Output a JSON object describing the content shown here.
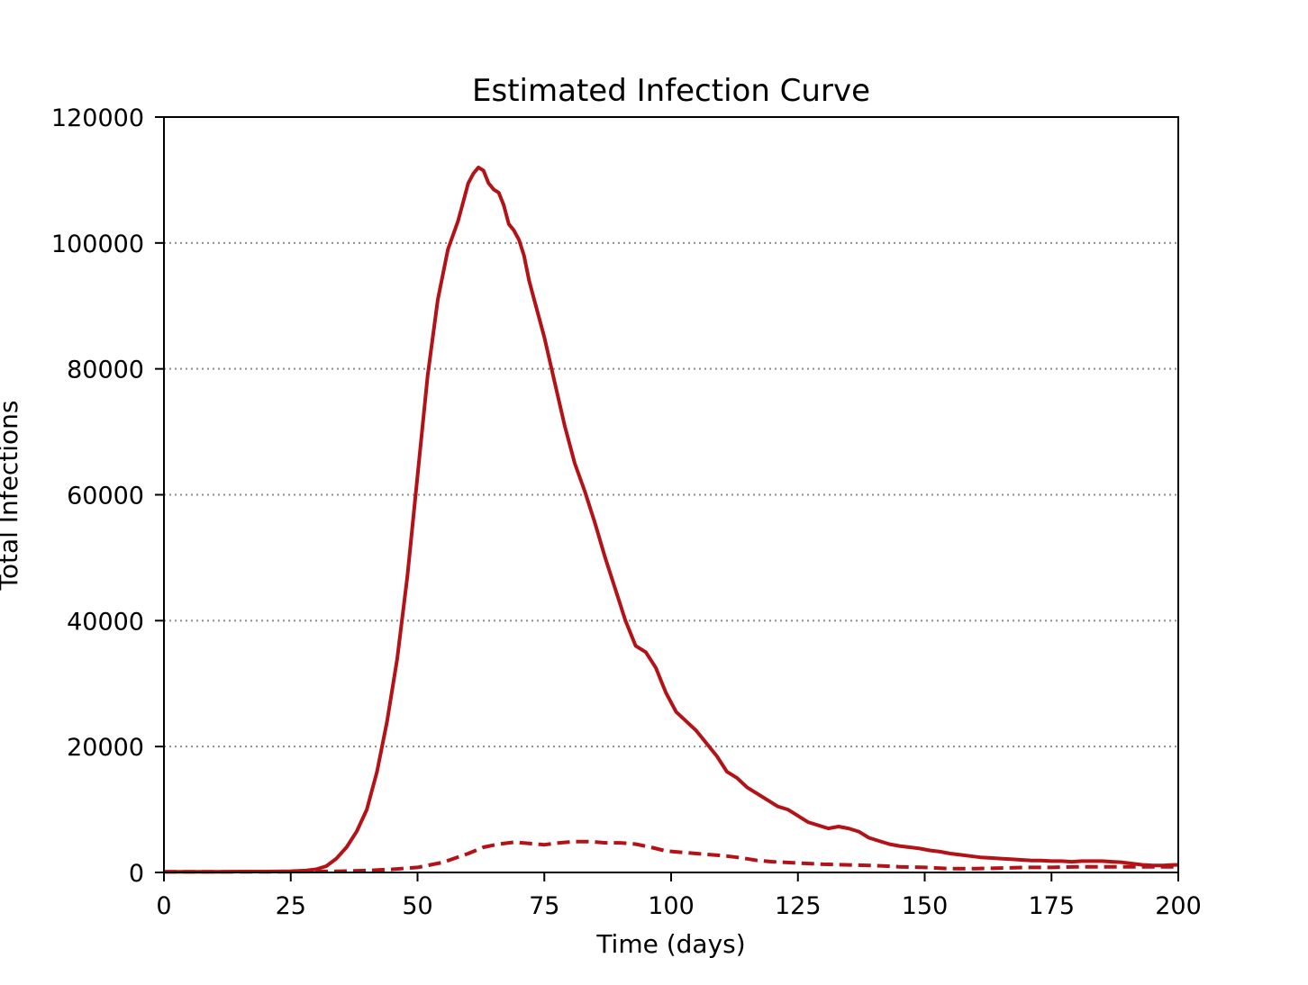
{
  "chart_data": {
    "type": "line",
    "title": "Estimated Infection Curve",
    "xlabel": "Time (days)",
    "ylabel": "Total Infections",
    "xlim": [
      0,
      200
    ],
    "ylim": [
      0,
      120000
    ],
    "xticks": [
      0,
      25,
      50,
      75,
      100,
      125,
      150,
      175,
      200
    ],
    "yticks": [
      0,
      20000,
      40000,
      60000,
      80000,
      100000,
      120000
    ],
    "grid": "horizontal dotted",
    "legend": "none",
    "color": "#b31217",
    "series": [
      {
        "style": "solid",
        "x": [
          0,
          5,
          10,
          15,
          20,
          25,
          28,
          30,
          32,
          34,
          36,
          38,
          40,
          42,
          44,
          46,
          48,
          50,
          52,
          54,
          56,
          58,
          59,
          60,
          61,
          62,
          63,
          64,
          65,
          66,
          67,
          68,
          69,
          70,
          71,
          72,
          73,
          75,
          77,
          79,
          81,
          83,
          85,
          87,
          89,
          91,
          93,
          95,
          97,
          98,
          99,
          101,
          103,
          105,
          107,
          109,
          111,
          113,
          115,
          117,
          119,
          121,
          123,
          125,
          127,
          129,
          131,
          133,
          135,
          137,
          139,
          141,
          143,
          145,
          147,
          149,
          151,
          153,
          155,
          157,
          159,
          161,
          163,
          165,
          167,
          169,
          171,
          173,
          175,
          177,
          179,
          181,
          183,
          185,
          187,
          189,
          191,
          193,
          195,
          197,
          199,
          200
        ],
        "y": [
          100,
          100,
          100,
          150,
          150,
          200,
          300,
          500,
          1000,
          2200,
          4000,
          6500,
          10000,
          16000,
          24000,
          34000,
          47000,
          63000,
          79000,
          91000,
          99000,
          103500,
          106500,
          109500,
          111000,
          112000,
          111500,
          109500,
          108500,
          108000,
          106000,
          103000,
          102000,
          100500,
          98000,
          94000,
          91000,
          85000,
          78000,
          71000,
          65000,
          60500,
          55500,
          50000,
          45000,
          40000,
          36000,
          35000,
          32500,
          30500,
          28500,
          25500,
          24000,
          22500,
          20500,
          18500,
          16000,
          15000,
          13500,
          12500,
          11500,
          10500,
          10000,
          9000,
          8000,
          7500,
          7000,
          7300,
          7000,
          6500,
          5500,
          5000,
          4500,
          4200,
          4000,
          3800,
          3500,
          3300,
          3000,
          2800,
          2600,
          2400,
          2300,
          2200,
          2100,
          2000,
          1900,
          1900,
          1800,
          1800,
          1700,
          1800,
          1800,
          1800,
          1700,
          1600,
          1400,
          1200,
          1100,
          1100,
          1200,
          1200
        ]
      },
      {
        "style": "dashed",
        "x": [
          0,
          10,
          20,
          30,
          35,
          40,
          45,
          50,
          55,
          60,
          63,
          66,
          69,
          72,
          75,
          78,
          81,
          84,
          87,
          90,
          93,
          96,
          99,
          102,
          105,
          108,
          111,
          114,
          117,
          120,
          125,
          130,
          135,
          140,
          145,
          150,
          155,
          160,
          165,
          170,
          175,
          180,
          185,
          190,
          195,
          200
        ],
        "y": [
          100,
          100,
          100,
          150,
          200,
          300,
          500,
          800,
          1600,
          3000,
          4000,
          4500,
          4800,
          4600,
          4400,
          4700,
          4900,
          4900,
          4700,
          4700,
          4500,
          4000,
          3400,
          3200,
          3000,
          2800,
          2600,
          2300,
          1900,
          1700,
          1500,
          1300,
          1200,
          1100,
          900,
          800,
          600,
          600,
          700,
          800,
          800,
          900,
          900,
          900,
          900,
          900
        ]
      }
    ]
  }
}
